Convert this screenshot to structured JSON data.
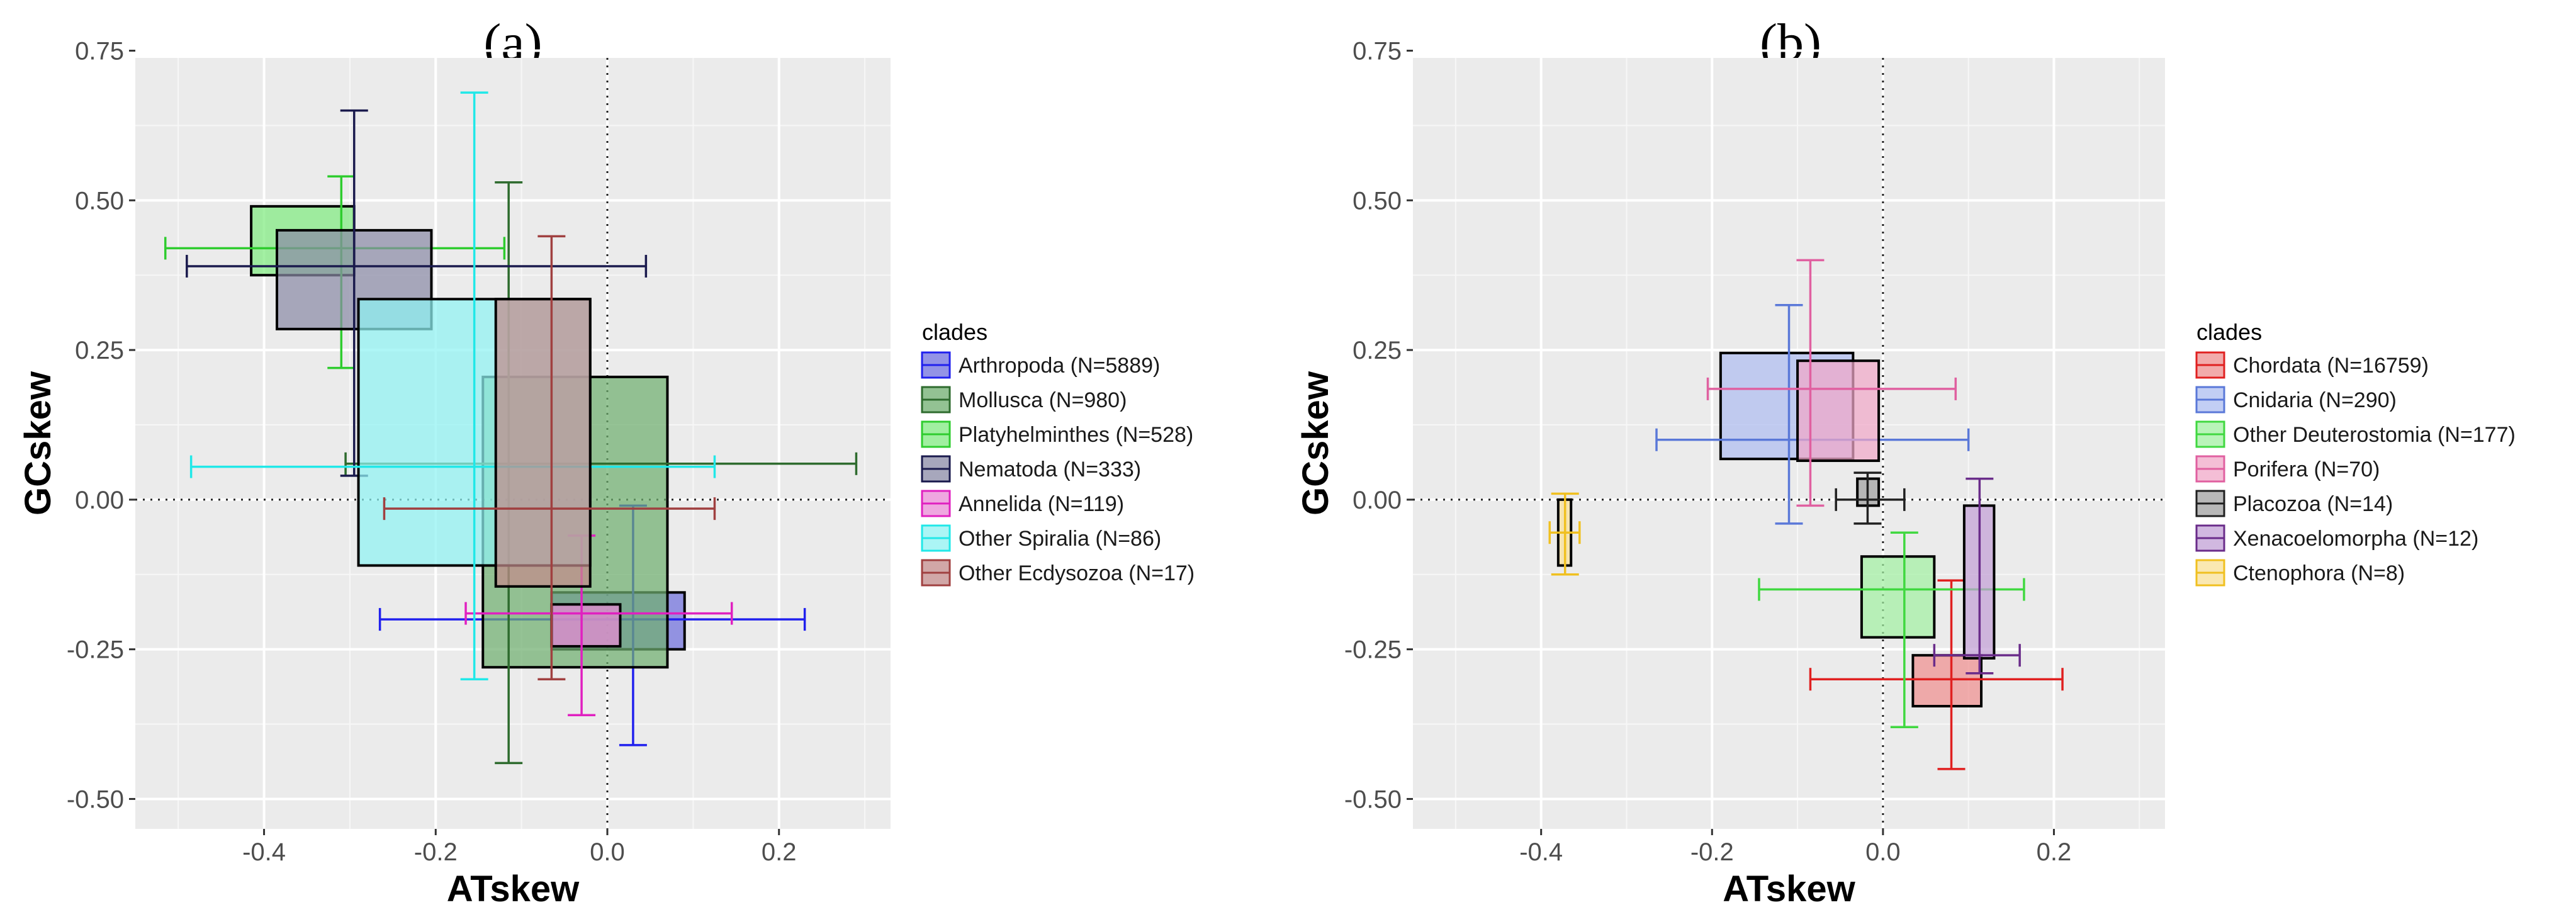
{
  "chart_data": [
    {
      "type": "box",
      "title": "(a)",
      "xlabel": "ATskew",
      "ylabel": "GCskew",
      "xlim": [
        -0.55,
        0.33
      ],
      "ylim": [
        -0.55,
        0.78
      ],
      "xticks": [
        -0.4,
        -0.2,
        0.0,
        0.2
      ],
      "xtick_labels": [
        "-0.4",
        "-0.2",
        "0.0",
        "0.2"
      ],
      "yticks": [
        -0.5,
        -0.25,
        0.0,
        0.25,
        0.5,
        0.75
      ],
      "ytick_labels": [
        "-0.50",
        "-0.25",
        "0.00",
        "0.25",
        "0.50",
        "0.75"
      ],
      "grid": true,
      "reference_lines": {
        "x": 0,
        "y": 0
      },
      "legend": {
        "title": "clades",
        "placement": "right"
      },
      "series": [
        {
          "name": "Arthropoda (N=5889)",
          "color": "#2020ee",
          "fill": "#6f6fdd",
          "x_box": [
            -0.065,
            0.09
          ],
          "y_box": [
            -0.25,
            -0.155
          ],
          "x_whisker": [
            -0.265,
            0.23
          ],
          "x_whisker_y": -0.2,
          "y_whisker": [
            -0.41,
            -0.01
          ],
          "y_whisker_x": 0.03
        },
        {
          "name": "Mollusca (N=980)",
          "color": "#2e6b2e",
          "fill": "#6fae6f",
          "x_box": [
            -0.145,
            0.07
          ],
          "y_box": [
            -0.28,
            0.205
          ],
          "x_whisker": [
            -0.305,
            0.29
          ],
          "x_whisker_y": 0.06,
          "y_whisker": [
            -0.44,
            0.53
          ],
          "y_whisker_x": -0.115
        },
        {
          "name": "Platyhelminthes (N=528)",
          "color": "#2ecc2e",
          "fill": "#80ea80",
          "x_box": [
            -0.415,
            -0.295
          ],
          "y_box": [
            0.375,
            0.49
          ],
          "x_whisker": [
            -0.515,
            -0.12
          ],
          "x_whisker_y": 0.42,
          "y_whisker": [
            0.22,
            0.54
          ],
          "y_whisker_x": -0.31
        },
        {
          "name": "Nematoda (N=333)",
          "color": "#1a1a4d",
          "fill": "#8a8aa6",
          "x_box": [
            -0.385,
            -0.205
          ],
          "y_box": [
            0.285,
            0.45
          ],
          "x_whisker": [
            -0.49,
            0.045
          ],
          "x_whisker_y": 0.39,
          "y_whisker": [
            0.04,
            0.65
          ],
          "y_whisker_x": -0.295
        },
        {
          "name": "Annelida (N=119)",
          "color": "#e020c0",
          "fill": "#e98ad6",
          "x_box": [
            -0.065,
            0.015
          ],
          "y_box": [
            -0.245,
            -0.175
          ],
          "x_whisker": [
            -0.165,
            0.145
          ],
          "x_whisker_y": -0.19,
          "y_whisker": [
            -0.36,
            -0.06
          ],
          "y_whisker_x": -0.03
        },
        {
          "name": "Other Spiralia (N=86)",
          "color": "#20e8e8",
          "fill": "#8ff2f2",
          "x_box": [
            -0.29,
            -0.02
          ],
          "y_box": [
            -0.11,
            0.335
          ],
          "x_whisker": [
            -0.485,
            0.125
          ],
          "x_whisker_y": 0.055,
          "y_whisker": [
            -0.3,
            0.68
          ],
          "y_whisker_x": -0.155
        },
        {
          "name": "Other Ecdysozoa (N=17)",
          "color": "#a04040",
          "fill": "#c28a8a",
          "x_box": [
            -0.13,
            -0.02
          ],
          "y_box": [
            -0.145,
            0.335
          ],
          "x_whisker": [
            -0.26,
            0.125
          ],
          "x_whisker_y": -0.015,
          "y_whisker": [
            -0.3,
            0.44
          ],
          "y_whisker_x": -0.065
        }
      ]
    },
    {
      "type": "box",
      "title": "(b)",
      "xlabel": "ATskew",
      "ylabel": "GCskew",
      "xlim": [
        -0.55,
        0.33
      ],
      "ylim": [
        -0.55,
        0.78
      ],
      "xticks": [
        -0.4,
        -0.2,
        0.0,
        0.2
      ],
      "xtick_labels": [
        "-0.4",
        "-0.2",
        "0.0",
        "0.2"
      ],
      "yticks": [
        -0.5,
        -0.25,
        0.0,
        0.25,
        0.5,
        0.75
      ],
      "ytick_labels": [
        "-0.50",
        "-0.25",
        "0.00",
        "0.25",
        "0.50",
        "0.75"
      ],
      "grid": true,
      "reference_lines": {
        "x": 0,
        "y": 0
      },
      "legend": {
        "title": "clades",
        "placement": "right"
      },
      "series": [
        {
          "name": "Chordata (N=16759)",
          "color": "#e02020",
          "fill": "#ee8f8f",
          "x_box": [
            0.035,
            0.115
          ],
          "y_box": [
            -0.345,
            -0.26
          ],
          "x_whisker": [
            -0.085,
            0.21
          ],
          "x_whisker_y": -0.3,
          "y_whisker": [
            -0.45,
            -0.135
          ],
          "y_whisker_x": 0.08
        },
        {
          "name": "Cnidaria (N=290)",
          "color": "#5a78d8",
          "fill": "#aebdf0",
          "x_box": [
            -0.19,
            -0.035
          ],
          "y_box": [
            0.068,
            0.245
          ],
          "x_whisker": [
            -0.265,
            0.1
          ],
          "x_whisker_y": 0.1,
          "y_whisker": [
            -0.04,
            0.325
          ],
          "y_whisker_x": -0.11
        },
        {
          "name": "Other Deuterostomia (N=177)",
          "color": "#40d840",
          "fill": "#a2f0a2",
          "x_box": [
            -0.025,
            0.06
          ],
          "y_box": [
            -0.23,
            -0.095
          ],
          "x_whisker": [
            -0.145,
            0.165
          ],
          "x_whisker_y": -0.15,
          "y_whisker": [
            -0.38,
            -0.055
          ],
          "y_whisker_x": 0.025
        },
        {
          "name": "Porifera (N=70)",
          "color": "#e060a0",
          "fill": "#f0a8c8",
          "x_box": [
            -0.1,
            -0.005
          ],
          "y_box": [
            0.065,
            0.232
          ],
          "x_whisker": [
            -0.205,
            0.085
          ],
          "x_whisker_y": 0.185,
          "y_whisker": [
            -0.01,
            0.4
          ],
          "y_whisker_x": -0.085
        },
        {
          "name": "Placozoa (N=14)",
          "color": "#202020",
          "fill": "#a0a0a0",
          "x_box": [
            -0.03,
            -0.005
          ],
          "y_box": [
            -0.01,
            0.035
          ],
          "x_whisker": [
            -0.055,
            0.025
          ],
          "x_whisker_y": 0.0,
          "y_whisker": [
            -0.04,
            0.045
          ],
          "y_whisker_x": -0.018
        },
        {
          "name": "Xenacoelomorpha (N=12)",
          "color": "#6a2c8a",
          "fill": "#c2a0d6",
          "x_box": [
            0.095,
            0.13
          ],
          "y_box": [
            -0.265,
            -0.01
          ],
          "x_whisker": [
            0.06,
            0.16
          ],
          "x_whisker_y": -0.26,
          "y_whisker": [
            -0.29,
            0.035
          ],
          "y_whisker_x": 0.113
        },
        {
          "name": "Ctenophora (N=8)",
          "color": "#f0c020",
          "fill": "#f8e098",
          "x_box": [
            -0.38,
            -0.365
          ],
          "y_box": [
            -0.11,
            0.0
          ],
          "x_whisker": [
            -0.39,
            -0.355
          ],
          "x_whisker_y": -0.055,
          "y_whisker": [
            -0.125,
            0.01
          ],
          "y_whisker_x": -0.372
        }
      ]
    }
  ]
}
